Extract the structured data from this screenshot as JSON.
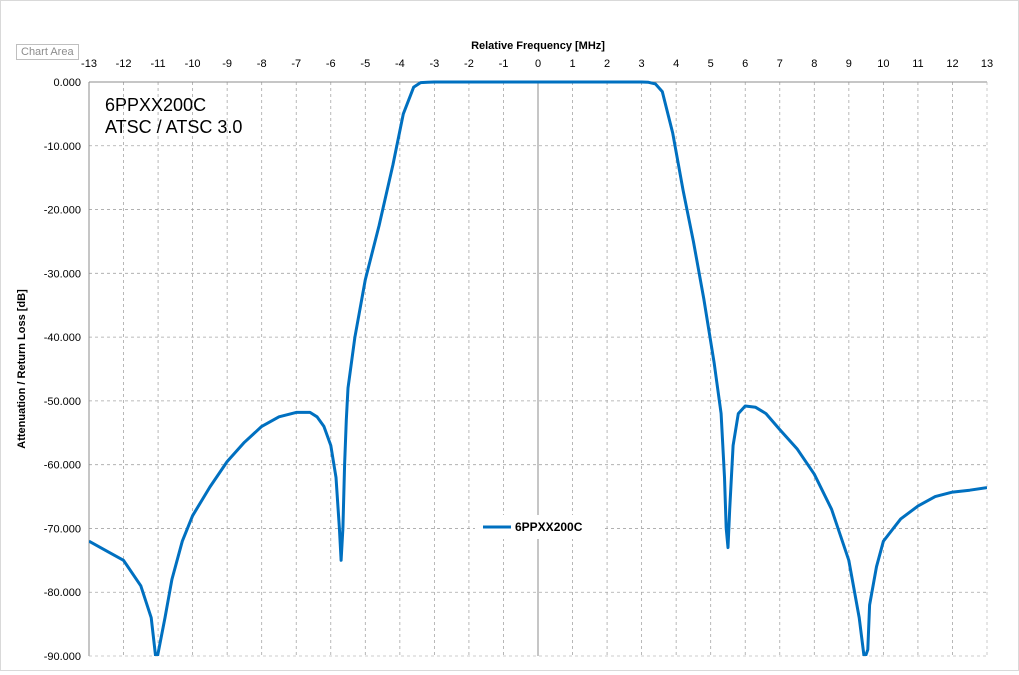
{
  "chart_area_tag": "Chart Area",
  "chart_data": {
    "type": "line",
    "xlabel": "Relative Frequency [MHz]",
    "ylabel": "Attenuation / Return Loss [dB]",
    "xlim": [
      -13,
      13
    ],
    "ylim": [
      -90,
      0
    ],
    "xticks": [
      -13,
      -12,
      -11,
      -10,
      -9,
      -8,
      -7,
      -6,
      -5,
      -4,
      -3,
      -2,
      -1,
      0,
      1,
      2,
      3,
      4,
      5,
      6,
      7,
      8,
      9,
      10,
      11,
      12,
      13
    ],
    "yticks": [
      0,
      -10,
      -20,
      -30,
      -40,
      -50,
      -60,
      -70,
      -80,
      -90
    ],
    "ytick_labels": [
      "0.000",
      "-10.000",
      "-20.000",
      "-30.000",
      "-40.000",
      "-50.000",
      "-60.000",
      "-70.000",
      "-80.000",
      "-90.000"
    ],
    "x_axis_position": "top",
    "grid": true,
    "annotations": [
      "6PPXX200C",
      "ATSC / ATSC 3.0"
    ],
    "legend": {
      "position": "center-bottom"
    },
    "colors": {
      "series": "#0070C0",
      "grid": "#a6a6a6"
    },
    "series": [
      {
        "name": "6PPXX200C",
        "x": [
          -13.0,
          -12.5,
          -12.0,
          -11.5,
          -11.2,
          -11.05,
          -10.8,
          -10.6,
          -10.3,
          -10.0,
          -9.5,
          -9.0,
          -8.5,
          -8.0,
          -7.5,
          -7.0,
          -6.6,
          -6.4,
          -6.2,
          -6.0,
          -5.85,
          -5.75,
          -5.7,
          -5.65,
          -5.6,
          -5.55,
          -5.5,
          -5.3,
          -5.0,
          -4.6,
          -4.2,
          -3.9,
          -3.6,
          -3.4,
          -3.2,
          -3.0,
          -2.5,
          0.0,
          2.5,
          3.0,
          3.2,
          3.4,
          3.6,
          3.9,
          4.2,
          4.5,
          4.8,
          5.1,
          5.3,
          5.4,
          5.45,
          5.5,
          5.55,
          5.65,
          5.8,
          6.0,
          6.3,
          6.6,
          7.0,
          7.5,
          8.0,
          8.5,
          9.0,
          9.3,
          9.45,
          9.55,
          9.6,
          9.8,
          10.0,
          10.5,
          11.0,
          11.5,
          12.0,
          12.5,
          13.0
        ],
        "y": [
          -72.0,
          -73.5,
          -75.0,
          -79.0,
          -84.0,
          -91.0,
          -84.0,
          -78.0,
          -72.0,
          -68.0,
          -63.5,
          -59.5,
          -56.5,
          -54.0,
          -52.5,
          -51.8,
          -51.8,
          -52.5,
          -54.0,
          -57.0,
          -62.0,
          -70.0,
          -75.0,
          -70.0,
          -60.0,
          -53.0,
          -48.0,
          -40.0,
          -31.0,
          -22.5,
          -13.0,
          -5.0,
          -0.8,
          -0.1,
          -0.05,
          0.0,
          0.0,
          0.0,
          0.0,
          0.0,
          -0.05,
          -0.3,
          -1.5,
          -8.0,
          -17.0,
          -25.0,
          -34.0,
          -44.0,
          -52.0,
          -62.0,
          -70.0,
          -73.0,
          -67.0,
          -57.0,
          -52.0,
          -50.8,
          -51.0,
          -52.0,
          -54.5,
          -57.5,
          -61.5,
          -67.0,
          -75.0,
          -84.0,
          -90.5,
          -89.0,
          -82.0,
          -76.0,
          -72.0,
          -68.5,
          -66.5,
          -65.0,
          -64.3,
          -64.0,
          -63.6
        ]
      }
    ]
  }
}
